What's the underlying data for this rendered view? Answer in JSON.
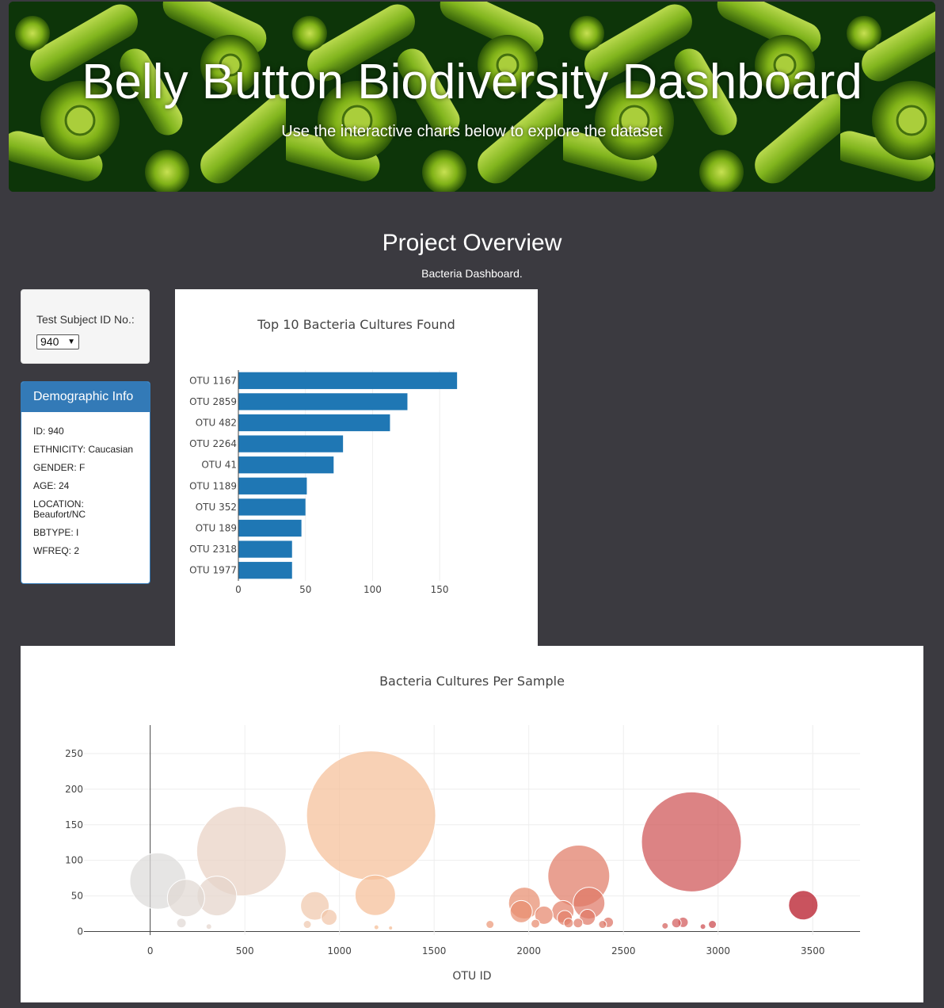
{
  "banner": {
    "title": "Belly Button Biodiversity Dashboard",
    "subtitle": "Use the interactive charts below to explore the dataset"
  },
  "overview": {
    "title": "Project Overview",
    "subtitle": "Bacteria Dashboard."
  },
  "selector": {
    "label": "Test Subject ID No.:",
    "selected": "940"
  },
  "demographics": {
    "header": "Demographic Info",
    "rows": [
      "ID: 940",
      "ETHNICITY: Caucasian",
      "GENDER: F",
      "AGE: 24",
      "LOCATION: Beaufort/NC",
      "BBTYPE: I",
      "WFREQ: 2"
    ]
  },
  "colors": {
    "page_bg": "#3b3a40",
    "bar_fill": "#1f77b4",
    "panel_primary": "#337ab7"
  },
  "chart_data": [
    {
      "type": "bar",
      "orientation": "horizontal",
      "title": "Top 10 Bacteria Cultures Found",
      "categories": [
        "OTU 1167",
        "OTU 2859",
        "OTU 482",
        "OTU 2264",
        "OTU 41",
        "OTU 1189",
        "OTU 352",
        "OTU 189",
        "OTU 2318",
        "OTU 1977"
      ],
      "values": [
        163,
        126,
        113,
        78,
        71,
        51,
        50,
        47,
        40,
        40
      ],
      "xlim": [
        0,
        170
      ],
      "xticks": [
        0,
        50,
        100,
        150
      ],
      "xlabel": "",
      "ylabel": "",
      "bar_color": "#1f77b4"
    },
    {
      "type": "scatter",
      "subtype": "bubble",
      "title": "Bacteria Cultures Per Sample",
      "xlabel": "OTU ID",
      "ylabel": "",
      "xlim": [
        -350,
        3750
      ],
      "ylim": [
        -5,
        290
      ],
      "xticks": [
        0,
        500,
        1000,
        1500,
        2000,
        2500,
        3000,
        3500
      ],
      "yticks": [
        0,
        50,
        100,
        150,
        200,
        250
      ],
      "colorscale": "Earth-like (light gray → peach → red)",
      "points": [
        {
          "x": 41,
          "y": 71
        },
        {
          "x": 189,
          "y": 47
        },
        {
          "x": 352,
          "y": 50
        },
        {
          "x": 482,
          "y": 113
        },
        {
          "x": 165,
          "y": 12
        },
        {
          "x": 310,
          "y": 7
        },
        {
          "x": 870,
          "y": 36
        },
        {
          "x": 945,
          "y": 20
        },
        {
          "x": 830,
          "y": 10
        },
        {
          "x": 1167,
          "y": 163
        },
        {
          "x": 1189,
          "y": 51
        },
        {
          "x": 1195,
          "y": 6
        },
        {
          "x": 1270,
          "y": 5
        },
        {
          "x": 1795,
          "y": 10
        },
        {
          "x": 1977,
          "y": 40
        },
        {
          "x": 1960,
          "y": 28
        },
        {
          "x": 2035,
          "y": 11
        },
        {
          "x": 2080,
          "y": 23
        },
        {
          "x": 2180,
          "y": 28
        },
        {
          "x": 2190,
          "y": 19
        },
        {
          "x": 2210,
          "y": 12
        },
        {
          "x": 2264,
          "y": 78
        },
        {
          "x": 2318,
          "y": 40
        },
        {
          "x": 2310,
          "y": 20
        },
        {
          "x": 2260,
          "y": 12
        },
        {
          "x": 2390,
          "y": 10
        },
        {
          "x": 2420,
          "y": 13
        },
        {
          "x": 2720,
          "y": 8
        },
        {
          "x": 2780,
          "y": 12
        },
        {
          "x": 2815,
          "y": 13
        },
        {
          "x": 2859,
          "y": 126
        },
        {
          "x": 2920,
          "y": 7
        },
        {
          "x": 2970,
          "y": 10
        },
        {
          "x": 3450,
          "y": 37
        }
      ]
    }
  ]
}
